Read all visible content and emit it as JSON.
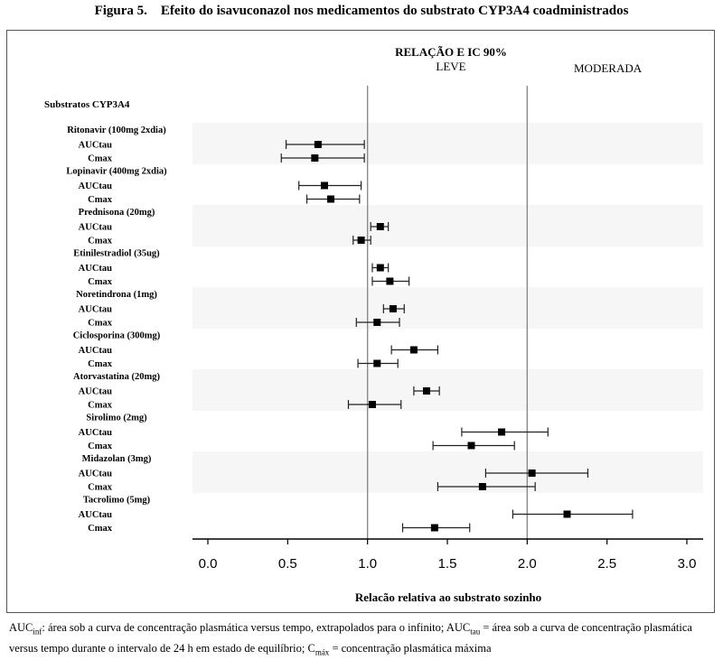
{
  "figure": {
    "number": "Figura 5.",
    "title": "Efeito do isavuconazol nos medicamentos do substrato CYP3A4 coadministrados"
  },
  "footnote": {
    "auc_inf_label": "AUC",
    "auc_inf_sub": "inf",
    "auc_inf_def": ": área sob a curva de concentração plasmática versus tempo, extrapolados para o infinito; ",
    "auc_tau_label": "AUC",
    "auc_tau_sub": "tau",
    "auc_tau_def": " = área sob a curva de concentração plasmática versus tempo durante o intervalo de 24 h em estado de equilíbrio; ",
    "cmax_label": "C",
    "cmax_sub": "máx",
    "cmax_def": " = concentração plasmática máxima"
  },
  "chart_data": {
    "type": "forest",
    "title": "RELAÇÃO E IC 90%",
    "band_labels": [
      "LEVE",
      "MODERADA"
    ],
    "group_header": "Substratos CYP3A4",
    "xlabel": "Relacão relativa ao substrato sozinho",
    "xlim": [
      0,
      3.0
    ],
    "xticks": [
      "0.0",
      "0.5",
      "1.0",
      "1.5",
      "2.0",
      "2.5",
      "3.0"
    ],
    "reference_lines": [
      1.0,
      2.0
    ],
    "groups": [
      {
        "name": "Ritonavir (100mg 2xdia)",
        "rows": [
          {
            "label": "AUCtau",
            "estimate": 0.69,
            "lower": 0.49,
            "upper": 0.98
          },
          {
            "label": "Cmax",
            "estimate": 0.67,
            "lower": 0.46,
            "upper": 0.98
          }
        ]
      },
      {
        "name": "Lopinavir (400mg 2xdia)",
        "rows": [
          {
            "label": "AUCtau",
            "estimate": 0.73,
            "lower": 0.57,
            "upper": 0.96
          },
          {
            "label": "Cmax",
            "estimate": 0.77,
            "lower": 0.62,
            "upper": 0.95
          }
        ]
      },
      {
        "name": "Prednisona (20mg)",
        "rows": [
          {
            "label": "AUCtau",
            "estimate": 1.08,
            "lower": 1.02,
            "upper": 1.13
          },
          {
            "label": "Cmax",
            "estimate": 0.96,
            "lower": 0.91,
            "upper": 1.02
          }
        ]
      },
      {
        "name": "Etinilestradiol (35ug)",
        "rows": [
          {
            "label": "AUCtau",
            "estimate": 1.08,
            "lower": 1.03,
            "upper": 1.13
          },
          {
            "label": "Cmax",
            "estimate": 1.14,
            "lower": 1.03,
            "upper": 1.26
          }
        ]
      },
      {
        "name": "Noretindrona (1mg)",
        "rows": [
          {
            "label": "AUCtau",
            "estimate": 1.16,
            "lower": 1.1,
            "upper": 1.23
          },
          {
            "label": "Cmax",
            "estimate": 1.06,
            "lower": 0.93,
            "upper": 1.2
          }
        ]
      },
      {
        "name": "Ciclosporina (300mg)",
        "rows": [
          {
            "label": "AUCtau",
            "estimate": 1.29,
            "lower": 1.15,
            "upper": 1.44
          },
          {
            "label": "Cmax",
            "estimate": 1.06,
            "lower": 0.94,
            "upper": 1.19
          }
        ]
      },
      {
        "name": "Atorvastatina (20mg)",
        "rows": [
          {
            "label": "AUCtau",
            "estimate": 1.37,
            "lower": 1.29,
            "upper": 1.45
          },
          {
            "label": "Cmax",
            "estimate": 1.03,
            "lower": 0.88,
            "upper": 1.21
          }
        ]
      },
      {
        "name": "Sirolimo (2mg)",
        "rows": [
          {
            "label": "AUCtau",
            "estimate": 1.84,
            "lower": 1.59,
            "upper": 2.13
          },
          {
            "label": "Cmax",
            "estimate": 1.65,
            "lower": 1.41,
            "upper": 1.92
          }
        ]
      },
      {
        "name": "Midazolan (3mg)",
        "rows": [
          {
            "label": "AUCtau",
            "estimate": 2.03,
            "lower": 1.74,
            "upper": 2.38
          },
          {
            "label": "Cmax",
            "estimate": 1.72,
            "lower": 1.44,
            "upper": 2.05
          }
        ]
      },
      {
        "name": "Tacrolimo (5mg)",
        "rows": [
          {
            "label": "AUCtau",
            "estimate": 2.25,
            "lower": 1.91,
            "upper": 2.66
          },
          {
            "label": "Cmax",
            "estimate": 1.42,
            "lower": 1.22,
            "upper": 1.64
          }
        ]
      }
    ]
  }
}
